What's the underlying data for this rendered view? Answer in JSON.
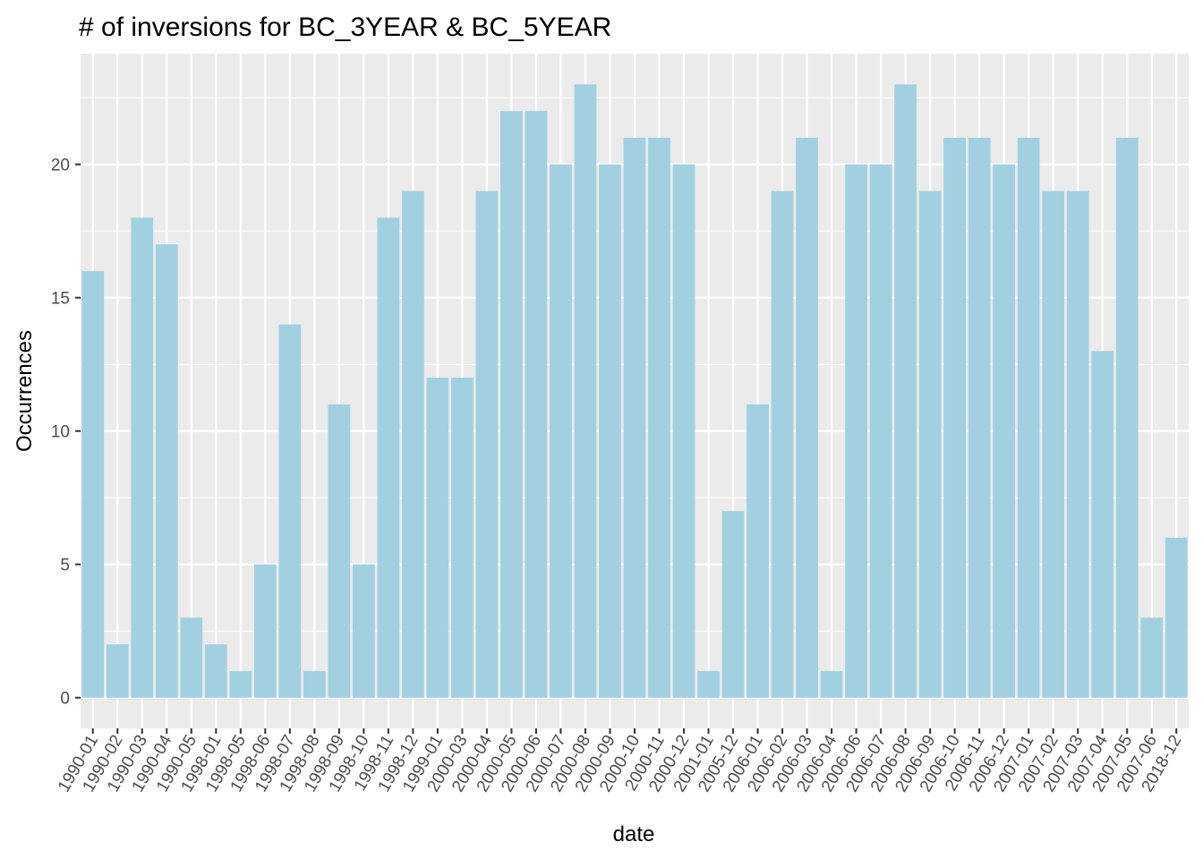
{
  "chart_data": {
    "type": "bar",
    "title": "# of inversions for BC_3YEAR & BC_5YEAR",
    "xlabel": "date",
    "ylabel": "Occurrences",
    "categories": [
      "1990-01",
      "1990-02",
      "1990-03",
      "1990-04",
      "1990-05",
      "1998-01",
      "1998-05",
      "1998-06",
      "1998-07",
      "1998-08",
      "1998-09",
      "1998-10",
      "1998-11",
      "1998-12",
      "1999-01",
      "2000-03",
      "2000-04",
      "2000-05",
      "2000-06",
      "2000-07",
      "2000-08",
      "2000-09",
      "2000-10",
      "2000-11",
      "2000-12",
      "2001-01",
      "2005-12",
      "2006-01",
      "2006-02",
      "2006-03",
      "2006-04",
      "2006-06",
      "2006-07",
      "2006-08",
      "2006-09",
      "2006-10",
      "2006-11",
      "2006-12",
      "2007-01",
      "2007-02",
      "2007-03",
      "2007-04",
      "2007-05",
      "2007-06",
      "2018-12"
    ],
    "values": [
      16,
      2,
      18,
      17,
      3,
      2,
      1,
      5,
      14,
      1,
      11,
      5,
      18,
      19,
      12,
      12,
      19,
      22,
      22,
      20,
      23,
      20,
      21,
      21,
      20,
      1,
      7,
      11,
      19,
      21,
      1,
      20,
      20,
      23,
      19,
      21,
      21,
      20,
      21,
      19,
      19,
      13,
      21,
      3,
      6
    ],
    "yticks": [
      0,
      5,
      10,
      15,
      20
    ],
    "ylim": [
      -1.15,
      24.15
    ],
    "grid": true,
    "legend": "none",
    "colors": {
      "bar": "#a2d0e1",
      "panel": "#ebebeb",
      "grid_major": "#ffffff",
      "tick": "#333333"
    }
  }
}
